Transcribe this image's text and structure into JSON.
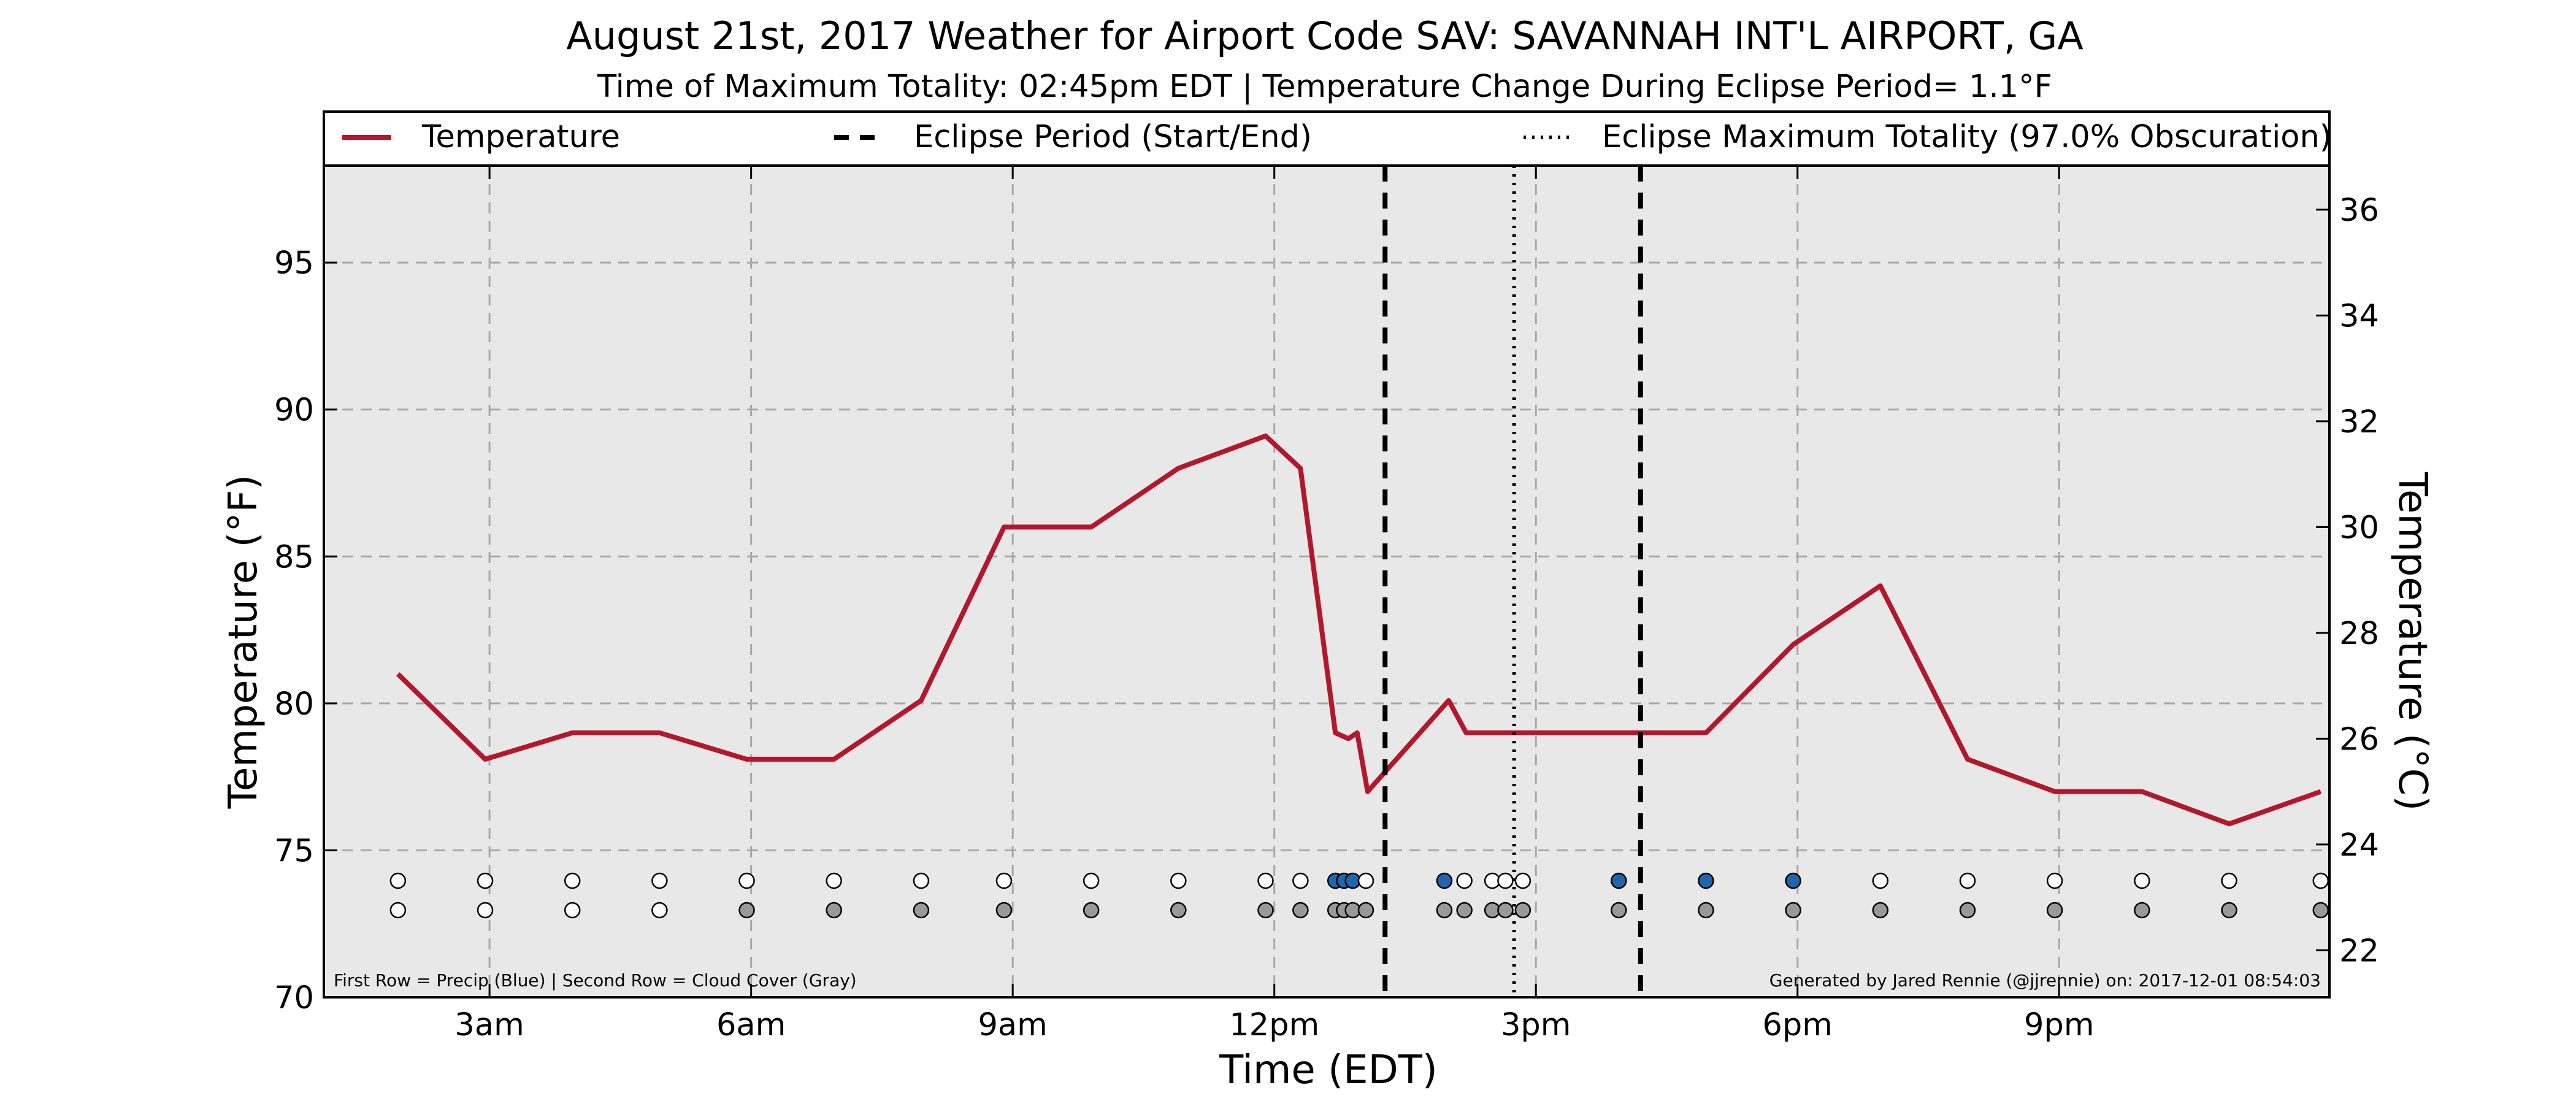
{
  "chart_data": {
    "type": "line",
    "title": "August 21st, 2017 Weather for Airport Code SAV: SAVANNAH INT'L AIRPORT, GA",
    "subtitle": "Time of Maximum Totality: 02:45pm EDT | Temperature Change During Eclipse Period= 1.1°F",
    "xlabel": "Time (EDT)",
    "ylabel_left": "Temperature (°F)",
    "ylabel_right": "Temperature (°C)",
    "xlim": [
      1.1,
      24.1
    ],
    "ylim": [
      70,
      98.3
    ],
    "x_ticks": [
      {
        "x": 3,
        "label": "3am"
      },
      {
        "x": 6,
        "label": "6am"
      },
      {
        "x": 9,
        "label": "9am"
      },
      {
        "x": 12,
        "label": "12pm"
      },
      {
        "x": 15,
        "label": "3pm"
      },
      {
        "x": 18,
        "label": "6pm"
      },
      {
        "x": 21,
        "label": "9pm"
      }
    ],
    "y_ticks_left": [
      70,
      75,
      80,
      85,
      90,
      95
    ],
    "y_ticks_right": [
      22,
      24,
      26,
      28,
      30,
      32,
      34,
      36
    ],
    "grid": true,
    "legend_position": "top",
    "legend": {
      "temperature": "Temperature",
      "eclipse_period": "Eclipse Period (Start/End)",
      "max_totality": "Eclipse Maximum Totality (97.0% Obscuration)"
    },
    "colors": {
      "temperature": "#b2182b",
      "precip": "#2166ac",
      "cloud": "#999999",
      "background": "#e8e8e8",
      "empty_marker": "#ffffff"
    },
    "series": [
      {
        "name": "Temperature",
        "points": [
          [
            1.95,
            81
          ],
          [
            2.95,
            78.1
          ],
          [
            3.95,
            79
          ],
          [
            4.95,
            79
          ],
          [
            5.95,
            78.1
          ],
          [
            6.95,
            78.1
          ],
          [
            7.95,
            80.1
          ],
          [
            8.9,
            86
          ],
          [
            9.9,
            86
          ],
          [
            10.9,
            88
          ],
          [
            11.9,
            89.1
          ],
          [
            12.3,
            88
          ],
          [
            12.7,
            79
          ],
          [
            12.85,
            78.8
          ],
          [
            12.95,
            79
          ],
          [
            13.07,
            77
          ],
          [
            14.0,
            80.1
          ],
          [
            14.2,
            79
          ],
          [
            15.0,
            79
          ],
          [
            16.0,
            79
          ],
          [
            16.95,
            79
          ],
          [
            17.95,
            82
          ],
          [
            18.95,
            84
          ],
          [
            19.95,
            78.1
          ],
          [
            20.95,
            77
          ],
          [
            21.95,
            77
          ],
          [
            22.95,
            75.9
          ],
          [
            24.0,
            77
          ]
        ]
      }
    ],
    "eclipse_start": 13.27,
    "eclipse_max": 14.75,
    "eclipse_end": 16.2,
    "precip_markers": [
      {
        "x": 1.95,
        "precip": false,
        "cloud": false
      },
      {
        "x": 2.95,
        "precip": false,
        "cloud": false
      },
      {
        "x": 3.95,
        "precip": false,
        "cloud": false
      },
      {
        "x": 4.95,
        "precip": false,
        "cloud": false
      },
      {
        "x": 5.95,
        "precip": false,
        "cloud": true
      },
      {
        "x": 6.95,
        "precip": false,
        "cloud": true
      },
      {
        "x": 7.95,
        "precip": false,
        "cloud": true
      },
      {
        "x": 8.9,
        "precip": false,
        "cloud": true
      },
      {
        "x": 9.9,
        "precip": false,
        "cloud": true
      },
      {
        "x": 10.9,
        "precip": false,
        "cloud": true
      },
      {
        "x": 11.9,
        "precip": false,
        "cloud": true
      },
      {
        "x": 12.3,
        "precip": false,
        "cloud": true
      },
      {
        "x": 12.7,
        "precip": true,
        "cloud": true
      },
      {
        "x": 12.8,
        "precip": true,
        "cloud": true
      },
      {
        "x": 12.9,
        "precip": true,
        "cloud": true
      },
      {
        "x": 13.05,
        "precip": false,
        "cloud": true
      },
      {
        "x": 13.95,
        "precip": true,
        "cloud": true
      },
      {
        "x": 14.18,
        "precip": false,
        "cloud": true
      },
      {
        "x": 14.5,
        "precip": false,
        "cloud": true
      },
      {
        "x": 14.65,
        "precip": false,
        "cloud": true
      },
      {
        "x": 14.85,
        "precip": false,
        "cloud": true
      },
      {
        "x": 15.95,
        "precip": true,
        "cloud": true
      },
      {
        "x": 16.95,
        "precip": true,
        "cloud": true
      },
      {
        "x": 17.95,
        "precip": true,
        "cloud": true
      },
      {
        "x": 18.95,
        "precip": false,
        "cloud": true
      },
      {
        "x": 19.95,
        "precip": false,
        "cloud": true
      },
      {
        "x": 20.95,
        "precip": false,
        "cloud": true
      },
      {
        "x": 21.95,
        "precip": false,
        "cloud": true
      },
      {
        "x": 22.95,
        "precip": false,
        "cloud": true
      },
      {
        "x": 24.0,
        "precip": false,
        "cloud": true
      }
    ],
    "annotations": {
      "left": "First Row = Precip (Blue) | Second Row = Cloud Cover (Gray)",
      "right": "Generated by Jared Rennie (@jjrennie) on: 2017-12-01 08:54:03"
    }
  }
}
